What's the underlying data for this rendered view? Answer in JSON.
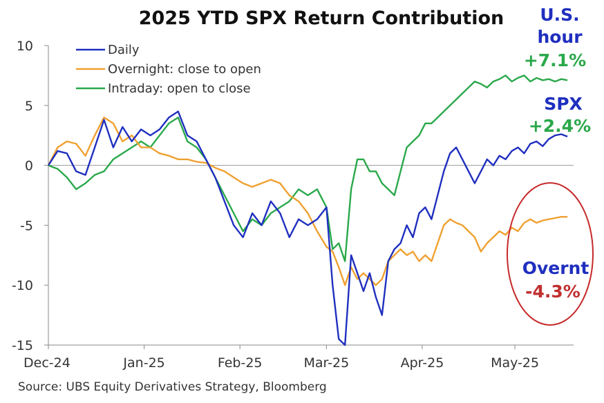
{
  "chart_data": {
    "type": "line",
    "title": "2025 YTD SPX Return Contribution",
    "source": "Source: UBS Equity Derivatives Strategy, Bloomberg",
    "xlabel": "",
    "ylabel": "",
    "ylim": [
      -15,
      10
    ],
    "yticks": [
      "10",
      "5",
      "0",
      "-5",
      "-10",
      "-15"
    ],
    "x_tick_labels": [
      "Dec-24",
      "Jan-25",
      "Feb-25",
      "Mar-25",
      "Apr-25",
      "May-25"
    ],
    "x_tick_days": [
      0,
      31,
      62,
      90,
      121,
      151
    ],
    "xlim": [
      0,
      170
    ],
    "legend": [
      {
        "name": "Daily",
        "color": "#1f2fbf"
      },
      {
        "name": "Overnight:  close to open",
        "color": "#f0a030"
      },
      {
        "name": "Intraday:    open to close",
        "color": "#2aa84a"
      }
    ],
    "series": [
      {
        "name": "Daily",
        "color": "#1f2fbf",
        "x": [
          0,
          3,
          6,
          9,
          12,
          15,
          18,
          21,
          24,
          27,
          30,
          33,
          36,
          39,
          42,
          45,
          48,
          51,
          54,
          57,
          60,
          63,
          66,
          69,
          72,
          75,
          78,
          81,
          84,
          87,
          90,
          92,
          94,
          96,
          98,
          100,
          102,
          104,
          106,
          108,
          110,
          112,
          114,
          116,
          118,
          120,
          122,
          124,
          126,
          128,
          130,
          132,
          134,
          136,
          138,
          140,
          142,
          144,
          146,
          148,
          150,
          152,
          154,
          156,
          158,
          160,
          162,
          164,
          166,
          168
        ],
        "values": [
          0,
          1.2,
          1.0,
          -0.5,
          -0.8,
          1.5,
          3.8,
          1.5,
          3.2,
          2.0,
          3.0,
          2.5,
          3.0,
          4.0,
          4.5,
          2.5,
          2.0,
          0.5,
          -1.0,
          -3.0,
          -5.0,
          -6.0,
          -4.0,
          -5.0,
          -3.0,
          -4.0,
          -6.0,
          -4.5,
          -5.0,
          -4.5,
          -3.5,
          -10.0,
          -14.5,
          -15.0,
          -7.5,
          -9.0,
          -10.5,
          -9.0,
          -11.0,
          -12.5,
          -8.0,
          -7.0,
          -6.5,
          -5.0,
          -6.0,
          -4.0,
          -3.5,
          -4.5,
          -2.5,
          -0.5,
          1.0,
          1.5,
          0.5,
          -0.5,
          -1.5,
          -0.5,
          0.5,
          0,
          0.8,
          0.5,
          1.2,
          1.5,
          1.0,
          1.8,
          2.0,
          1.6,
          2.2,
          2.5,
          2.6,
          2.4
        ]
      },
      {
        "name": "Overnight:  close to open",
        "color": "#f0a030",
        "x": [
          0,
          3,
          6,
          9,
          12,
          15,
          18,
          21,
          24,
          27,
          30,
          33,
          36,
          39,
          42,
          45,
          48,
          51,
          54,
          57,
          60,
          63,
          66,
          69,
          72,
          75,
          78,
          81,
          84,
          87,
          90,
          92,
          94,
          96,
          98,
          100,
          102,
          104,
          106,
          108,
          110,
          112,
          114,
          116,
          118,
          120,
          122,
          124,
          126,
          128,
          130,
          132,
          134,
          136,
          138,
          140,
          142,
          144,
          146,
          148,
          150,
          152,
          154,
          156,
          158,
          160,
          162,
          164,
          166,
          168
        ],
        "values": [
          0,
          1.5,
          2.0,
          1.8,
          0.8,
          2.5,
          4.0,
          3.5,
          2.0,
          2.5,
          1.5,
          1.5,
          1.0,
          0.8,
          0.5,
          0.5,
          0.3,
          0.2,
          -0.2,
          -0.5,
          -1.0,
          -1.5,
          -1.8,
          -1.5,
          -1.2,
          -1.5,
          -2.5,
          -3.0,
          -4.0,
          -5.5,
          -6.8,
          -7.2,
          -8.5,
          -10.0,
          -8.5,
          -9.5,
          -9.0,
          -9.5,
          -10.0,
          -9.5,
          -8.0,
          -7.5,
          -7.0,
          -7.5,
          -7.2,
          -8.0,
          -7.5,
          -8.0,
          -6.5,
          -5.0,
          -4.5,
          -4.8,
          -5.0,
          -5.5,
          -6.0,
          -7.2,
          -6.5,
          -6.0,
          -5.5,
          -5.8,
          -5.2,
          -5.5,
          -4.8,
          -4.5,
          -4.8,
          -4.6,
          -4.5,
          -4.4,
          -4.3,
          -4.3
        ]
      },
      {
        "name": "Intraday:    open to close",
        "color": "#2aa84a",
        "x": [
          0,
          3,
          6,
          9,
          12,
          15,
          18,
          21,
          24,
          27,
          30,
          33,
          36,
          39,
          42,
          45,
          48,
          51,
          54,
          57,
          60,
          63,
          66,
          69,
          72,
          75,
          78,
          81,
          84,
          87,
          90,
          92,
          94,
          96,
          98,
          100,
          102,
          104,
          106,
          108,
          110,
          112,
          114,
          116,
          118,
          120,
          122,
          124,
          126,
          128,
          130,
          132,
          134,
          136,
          138,
          140,
          142,
          144,
          146,
          148,
          150,
          152,
          154,
          156,
          158,
          160,
          162,
          164,
          166,
          168
        ],
        "values": [
          0,
          -0.3,
          -1.0,
          -2.0,
          -1.5,
          -0.8,
          -0.5,
          0.5,
          1.0,
          1.5,
          2.0,
          1.5,
          2.5,
          3.5,
          4.0,
          2.0,
          1.5,
          0.5,
          -1.0,
          -2.5,
          -4.0,
          -5.5,
          -4.5,
          -5.0,
          -4.0,
          -3.5,
          -3.0,
          -2.0,
          -2.5,
          -2.0,
          -3.5,
          -7.0,
          -6.5,
          -8.0,
          -2.0,
          0.5,
          0.5,
          -0.5,
          -0.5,
          -1.5,
          -2.0,
          -2.5,
          -0.5,
          1.5,
          2.0,
          2.5,
          3.5,
          3.5,
          4.0,
          4.5,
          5.0,
          5.5,
          6.0,
          6.5,
          7.0,
          6.8,
          6.5,
          7.0,
          7.2,
          7.5,
          7.0,
          7.3,
          7.5,
          7.0,
          7.3,
          7.1,
          7.2,
          7.0,
          7.2,
          7.1
        ]
      }
    ],
    "annotations": [
      {
        "key": "us_hour_1",
        "text": "U.S.",
        "color": "#1f2fbf"
      },
      {
        "key": "us_hour_2",
        "text": "hour",
        "color": "#1f2fbf"
      },
      {
        "key": "intraday_val",
        "text": "+7.1%",
        "color": "#2aa84a"
      },
      {
        "key": "spx_label",
        "text": "SPX",
        "color": "#1f2fbf"
      },
      {
        "key": "spx_val",
        "text": "+2.4%",
        "color": "#2aa84a"
      },
      {
        "key": "overnt_label",
        "text": "Overnt",
        "color": "#1f2fbf"
      },
      {
        "key": "overnt_val",
        "text": "-4.3%",
        "color": "#c03030"
      }
    ],
    "highlight_color": "#c62828"
  }
}
